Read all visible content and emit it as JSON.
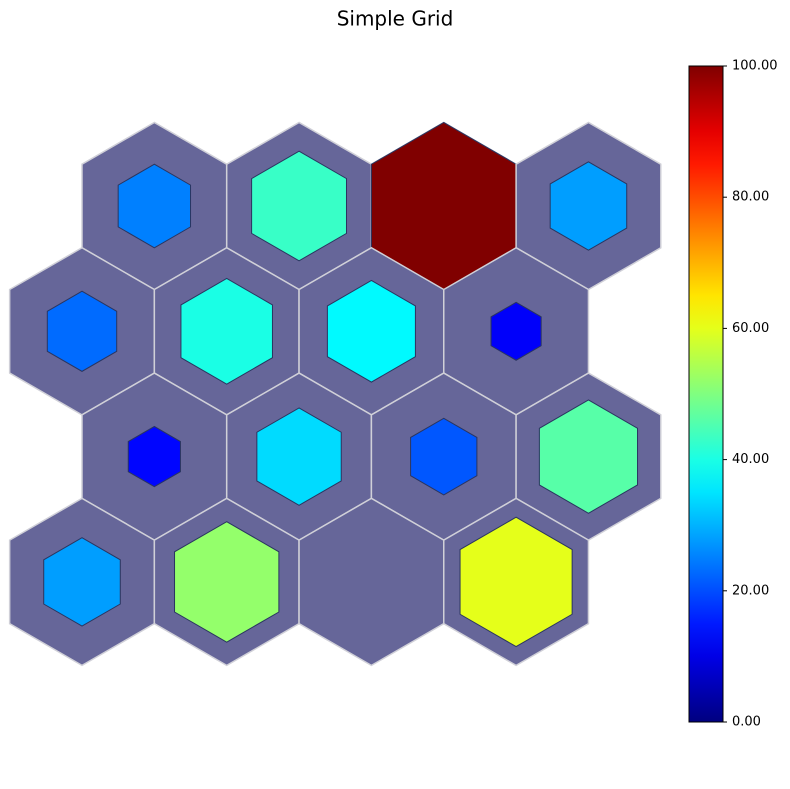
{
  "chart_data": {
    "type": "hexgrid",
    "title": "Simple Grid",
    "colormap": "jet",
    "values": [
      [
        25,
        43,
        100,
        28
      ],
      [
        23,
        40,
        37,
        12
      ],
      [
        13,
        34,
        21,
        46
      ],
      [
        28,
        52,
        0,
        60
      ]
    ],
    "clim": [
      0,
      100
    ],
    "cticks": [
      {
        "value": 0,
        "label": "0.00"
      },
      {
        "value": 20,
        "label": "20.00"
      },
      {
        "value": 40,
        "label": "40.00"
      },
      {
        "value": 60,
        "label": "60.00"
      },
      {
        "value": 80,
        "label": "80.00"
      },
      {
        "value": 100,
        "label": "100.00"
      }
    ]
  }
}
